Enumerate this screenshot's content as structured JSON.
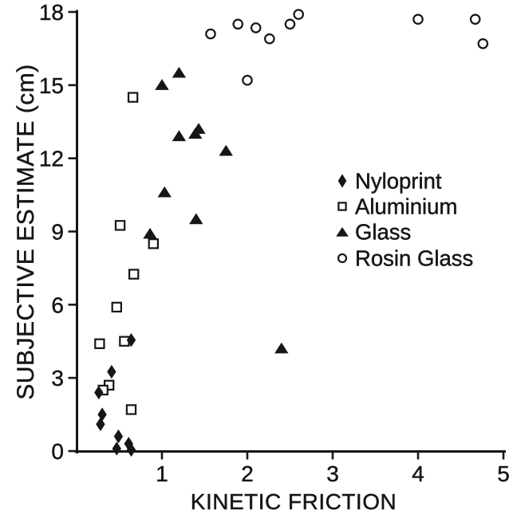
{
  "figure": {
    "background": "#ffffff",
    "ink": "#161616"
  },
  "chart_data": {
    "type": "scatter",
    "title": "",
    "xlabel": "KINETIC FRICTION",
    "ylabel": "SUBJECTIVE ESTIMATE (cm)",
    "xlim": [
      0,
      5
    ],
    "ylim": [
      0,
      18
    ],
    "x_ticks": [
      "1",
      "2",
      "3",
      "4",
      "5"
    ],
    "x_tick_values": [
      1,
      2,
      3,
      4,
      5
    ],
    "y_ticks": [
      "0",
      "3",
      "6",
      "9",
      "12",
      "15",
      "18"
    ],
    "y_tick_values": [
      0,
      3,
      6,
      9,
      12,
      15,
      18
    ],
    "grid": false,
    "legend": {
      "position": "middle-right",
      "entries": [
        {
          "label": "Nyloprint",
          "marker": "filled-diamond"
        },
        {
          "label": "Aluminium",
          "marker": "open-square"
        },
        {
          "label": "Glass",
          "marker": "filled-triangle"
        },
        {
          "label": "Rosin Glass",
          "marker": "open-circle"
        }
      ]
    },
    "series": [
      {
        "name": "Nyloprint",
        "marker": "filled-diamond",
        "points": [
          [
            0.64,
            4.55
          ],
          [
            0.41,
            3.25
          ],
          [
            0.26,
            2.4
          ],
          [
            0.3,
            1.5
          ],
          [
            0.28,
            1.1
          ],
          [
            0.49,
            0.6
          ],
          [
            0.47,
            0.1
          ],
          [
            0.61,
            0.3
          ],
          [
            0.64,
            0.05
          ]
        ]
      },
      {
        "name": "Aluminium",
        "marker": "open-square",
        "points": [
          [
            0.66,
            14.5
          ],
          [
            0.51,
            9.25
          ],
          [
            0.9,
            8.5
          ],
          [
            0.67,
            7.25
          ],
          [
            0.47,
            5.9
          ],
          [
            0.56,
            4.5
          ],
          [
            0.27,
            4.4
          ],
          [
            0.38,
            2.7
          ],
          [
            0.31,
            2.5
          ],
          [
            0.64,
            1.7
          ]
        ]
      },
      {
        "name": "Glass",
        "marker": "filled-triangle",
        "points": [
          [
            1.0,
            15.0
          ],
          [
            1.2,
            15.5
          ],
          [
            1.2,
            12.9
          ],
          [
            1.39,
            13.0
          ],
          [
            1.43,
            13.2
          ],
          [
            1.75,
            12.3
          ],
          [
            1.03,
            10.6
          ],
          [
            1.4,
            9.5
          ],
          [
            0.86,
            8.9
          ],
          [
            2.4,
            4.2
          ]
        ]
      },
      {
        "name": "Rosin Glass",
        "marker": "open-circle",
        "points": [
          [
            1.57,
            17.1
          ],
          [
            1.89,
            17.5
          ],
          [
            2.1,
            17.35
          ],
          [
            2.26,
            16.9
          ],
          [
            2.5,
            17.5
          ],
          [
            2.6,
            17.9
          ],
          [
            2.0,
            15.2
          ],
          [
            4.0,
            17.7
          ],
          [
            4.67,
            17.7
          ],
          [
            4.76,
            16.7
          ]
        ]
      }
    ]
  }
}
